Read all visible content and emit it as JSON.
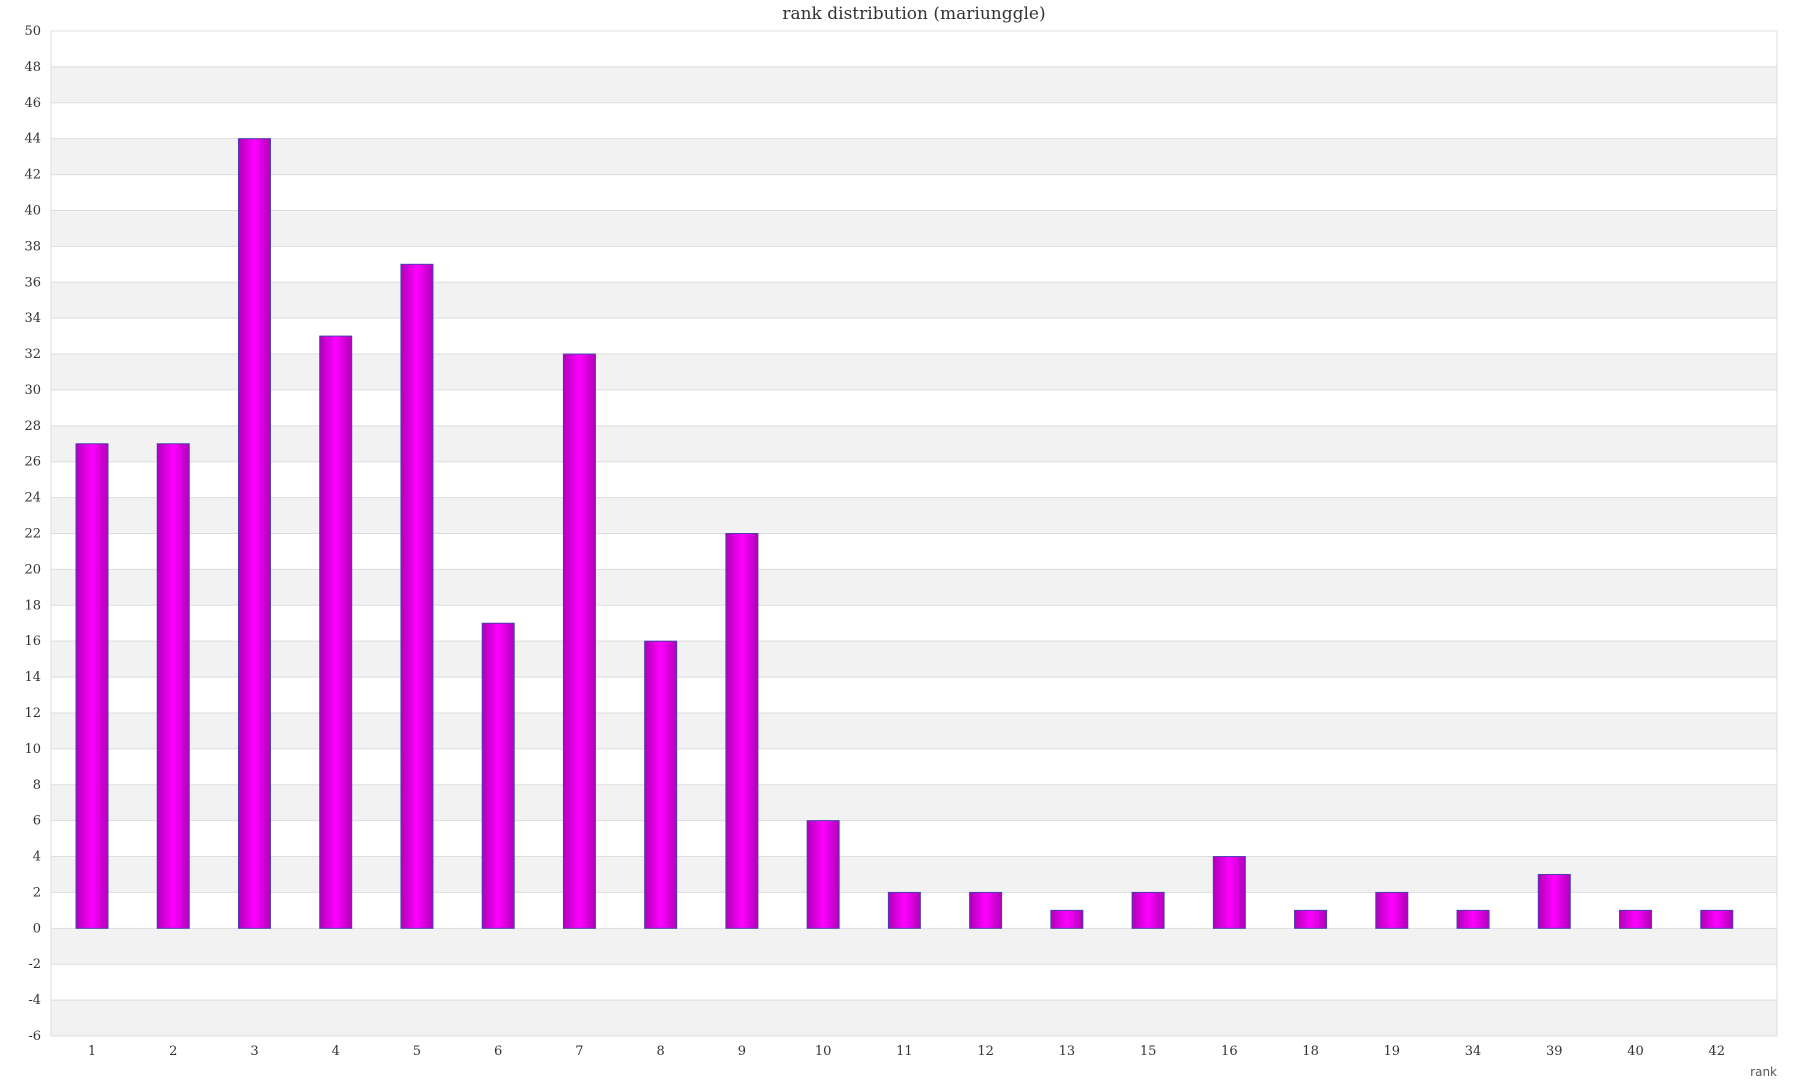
{
  "chart_data": {
    "type": "bar",
    "title": "rank distribution (mariunggle)",
    "xlabel": "rank",
    "ylabel": "",
    "ylim": [
      -6,
      50
    ],
    "ytick_step": 2,
    "grid": true,
    "legend": "none",
    "categories": [
      "1",
      "2",
      "3",
      "4",
      "5",
      "6",
      "7",
      "8",
      "9",
      "10",
      "11",
      "12",
      "13",
      "15",
      "16",
      "18",
      "19",
      "34",
      "39",
      "40",
      "42"
    ],
    "series": [
      {
        "values": [
          27,
          27,
          44,
          33,
          37,
          17,
          32,
          16,
          22,
          6,
          2,
          2,
          1,
          2,
          4,
          1,
          2,
          1,
          3,
          1,
          1
        ]
      }
    ],
    "colors": {
      "bar_center": "#ff00ff",
      "bar_edge": "#b000b8",
      "bar_stroke": "#4a3fb0",
      "band_shade": "#f2f2f2",
      "grid_line": "#dddddd"
    }
  }
}
